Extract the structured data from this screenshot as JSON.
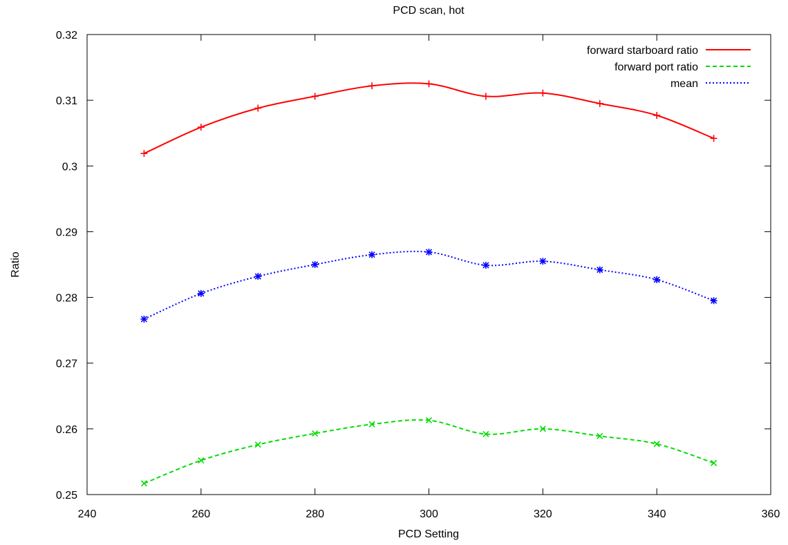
{
  "chart_data": {
    "type": "line",
    "title": "PCD scan, hot",
    "xlabel": "PCD Setting",
    "ylabel": "Ratio",
    "xlim": [
      240,
      360
    ],
    "ylim": [
      0.25,
      0.32
    ],
    "x_ticks": [
      240,
      260,
      280,
      300,
      320,
      340,
      360
    ],
    "x_tick_labels": [
      "240",
      "260",
      "280",
      "300",
      "320",
      "340",
      "360"
    ],
    "y_ticks": [
      0.25,
      0.26,
      0.27,
      0.28,
      0.29,
      0.3,
      0.31,
      0.32
    ],
    "y_tick_labels": [
      "0.25",
      "0.26",
      "0.27",
      "0.28",
      "0.29",
      "0.3",
      "0.31",
      "0.32"
    ],
    "grid": false,
    "legend_position": "top-right",
    "x": [
      250,
      260,
      270,
      280,
      290,
      300,
      310,
      320,
      330,
      340,
      350
    ],
    "series": [
      {
        "name": "forward starboard ratio",
        "color": "#ff0000",
        "dash": "solid",
        "marker": "plus",
        "values": [
          0.3019,
          0.3059,
          0.3088,
          0.3106,
          0.3122,
          0.3125,
          0.3106,
          0.3111,
          0.3095,
          0.3077,
          0.3042
        ]
      },
      {
        "name": "forward port ratio",
        "color": "#00dd00",
        "dash": "dashed",
        "marker": "cross",
        "values": [
          0.2517,
          0.2552,
          0.2576,
          0.2593,
          0.2607,
          0.2613,
          0.2592,
          0.26,
          0.2589,
          0.2577,
          0.2548
        ]
      },
      {
        "name": "mean",
        "color": "#0000ff",
        "dash": "dotted",
        "marker": "star",
        "values": [
          0.2767,
          0.2806,
          0.2832,
          0.285,
          0.2865,
          0.2869,
          0.2849,
          0.2855,
          0.2842,
          0.2827,
          0.2795
        ]
      }
    ]
  }
}
